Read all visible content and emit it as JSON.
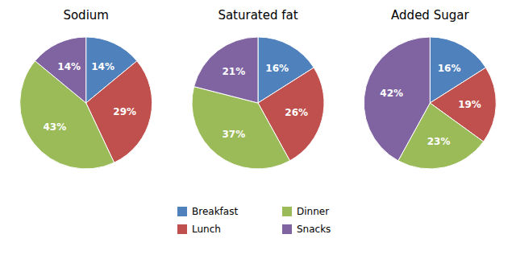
{
  "chart_data": [
    {
      "type": "pie",
      "title": "Sodium",
      "categories": [
        "Breakfast",
        "Lunch",
        "Dinner",
        "Snacks"
      ],
      "values": [
        14,
        29,
        43,
        14
      ],
      "value_labels": [
        "14%",
        "29%",
        "43%",
        "14%"
      ],
      "colors": [
        "#4F81BD",
        "#C0504D",
        "#9BBB59",
        "#8064A2"
      ],
      "data_labels": true,
      "legend": "bottom"
    },
    {
      "type": "pie",
      "title": "Saturated fat",
      "categories": [
        "Breakfast",
        "Lunch",
        "Dinner",
        "Snacks"
      ],
      "values": [
        16,
        26,
        37,
        21
      ],
      "value_labels": [
        "16%",
        "26%",
        "37%",
        "21%"
      ],
      "colors": [
        "#4F81BD",
        "#C0504D",
        "#9BBB59",
        "#8064A2"
      ],
      "data_labels": true,
      "legend": "bottom"
    },
    {
      "type": "pie",
      "title": "Added Sugar",
      "categories": [
        "Breakfast",
        "Lunch",
        "Dinner",
        "Snacks"
      ],
      "values": [
        16,
        19,
        23,
        42
      ],
      "value_labels": [
        "16%",
        "19%",
        "23%",
        "42%"
      ],
      "colors": [
        "#4F81BD",
        "#C0504D",
        "#9BBB59",
        "#8064A2"
      ],
      "data_labels": true,
      "legend": "bottom"
    }
  ]
}
